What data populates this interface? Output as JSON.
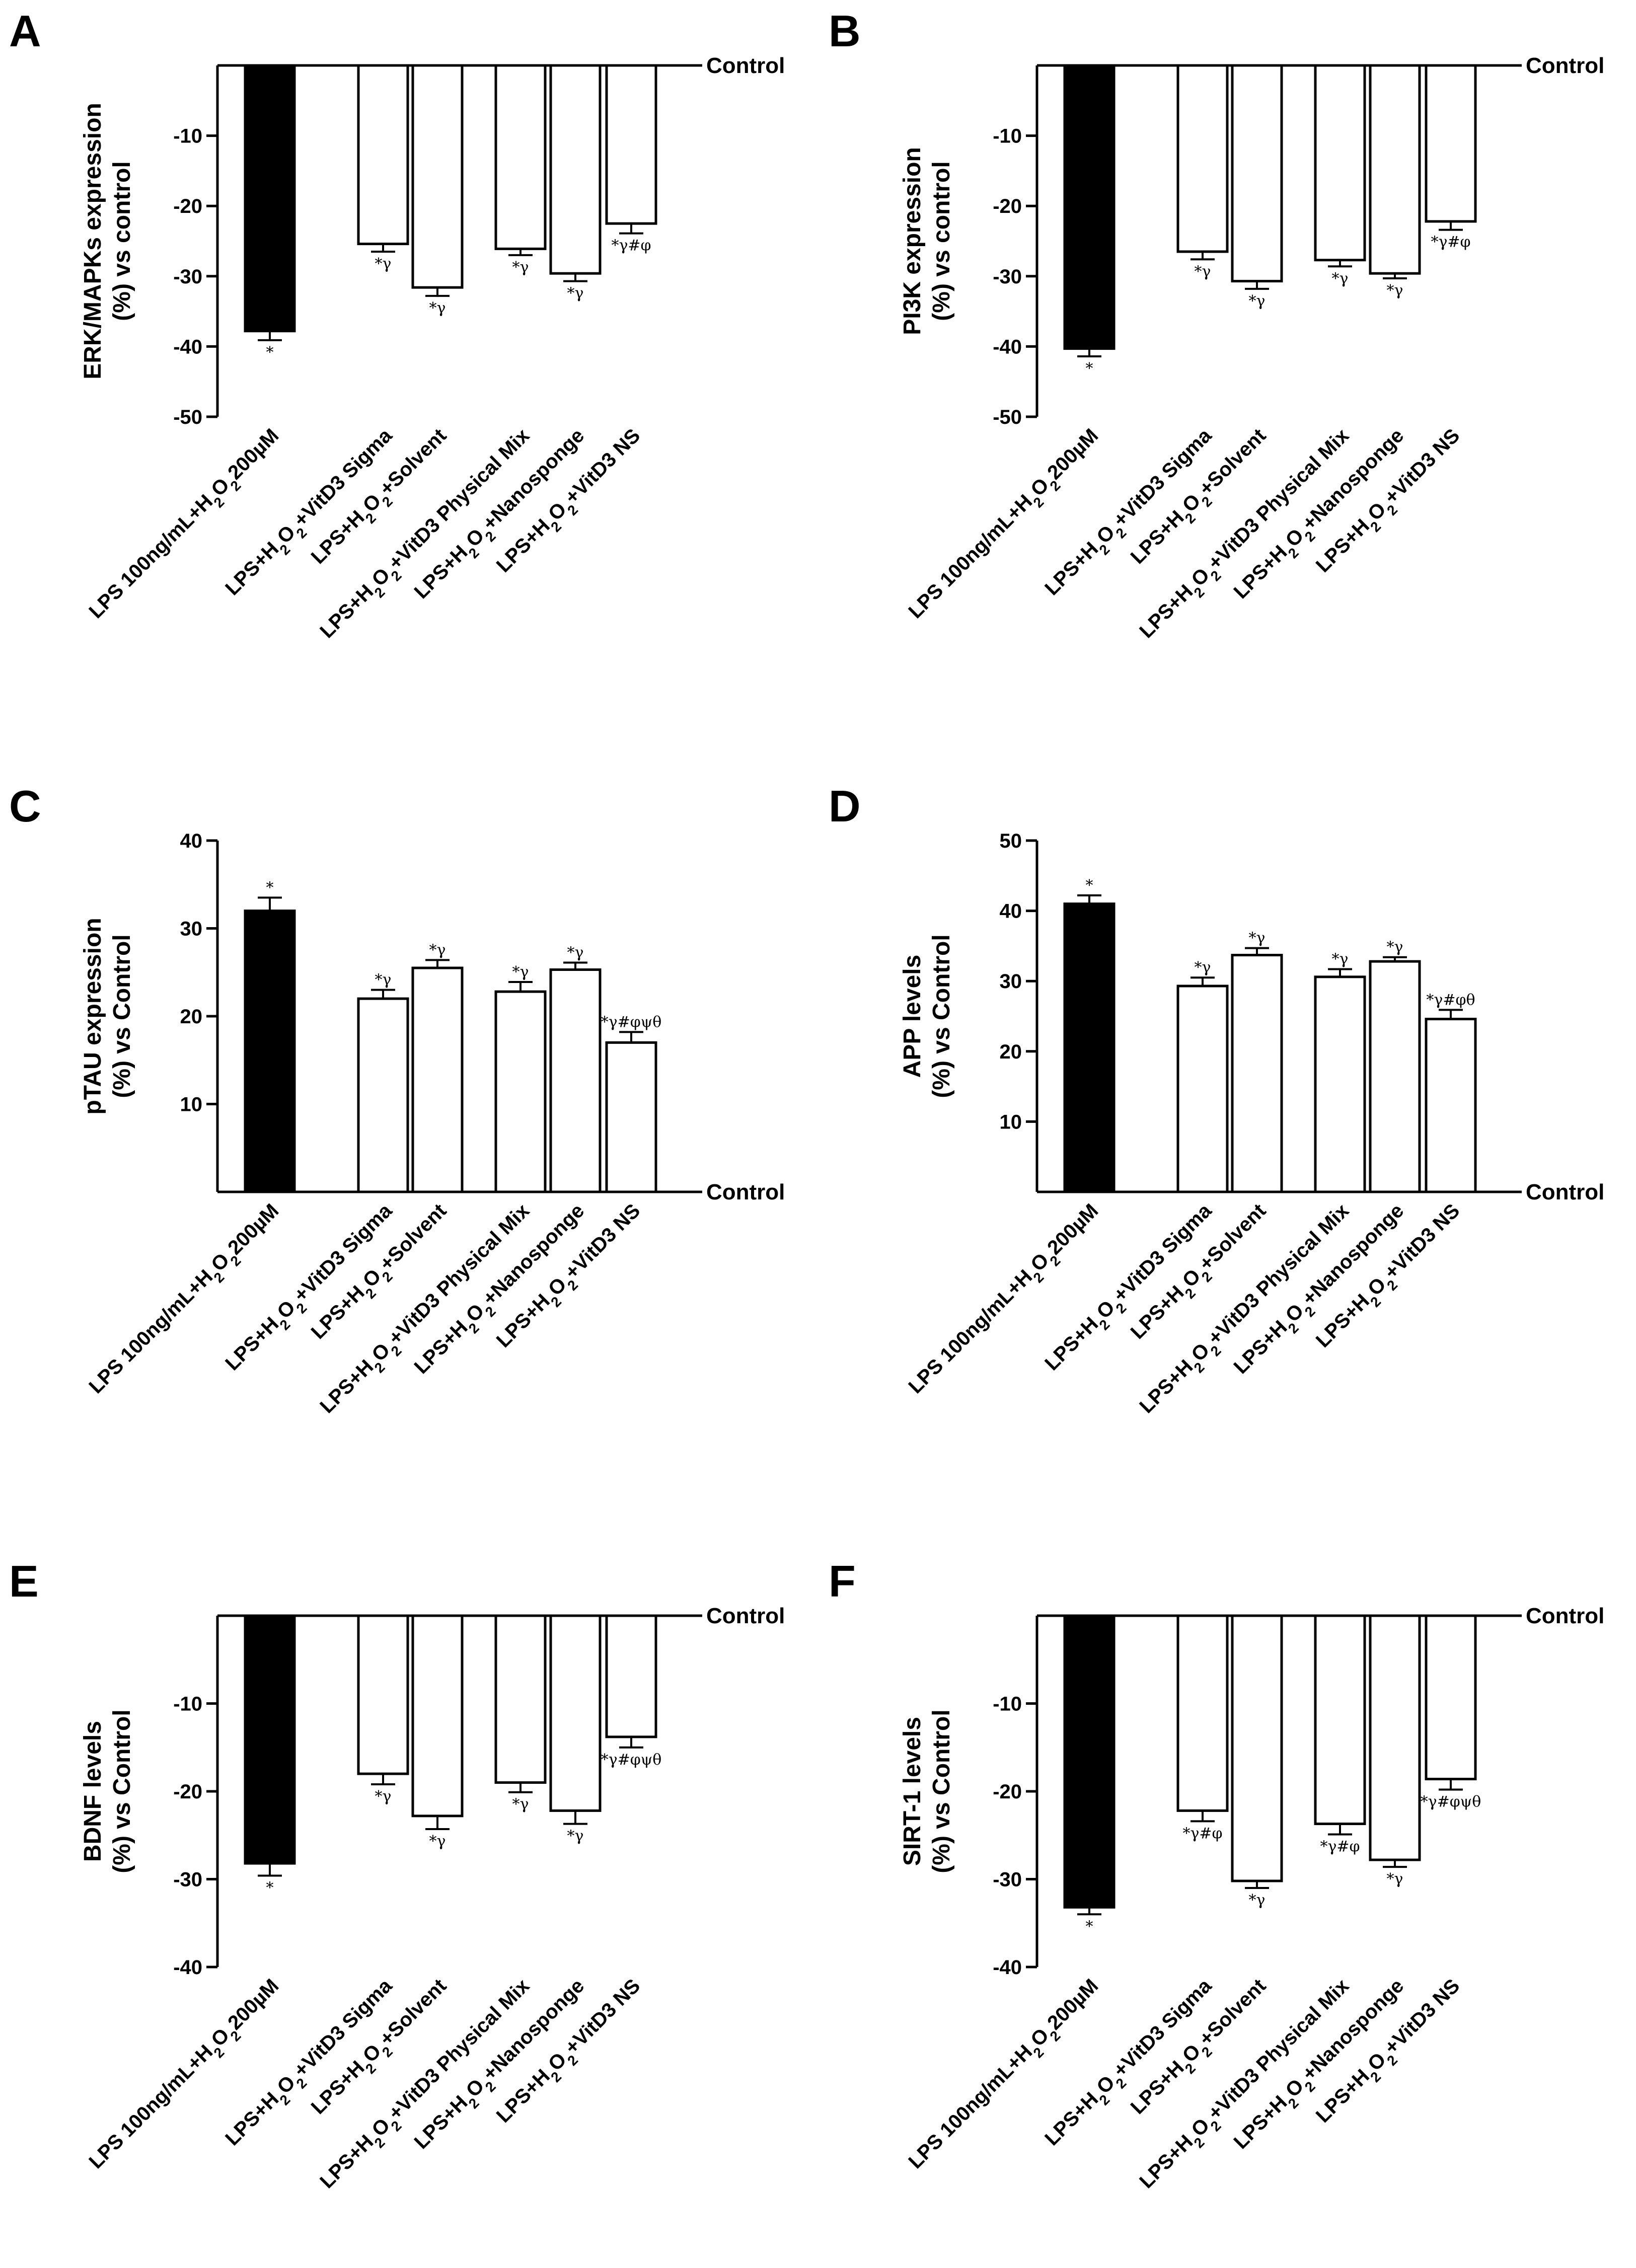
{
  "chart_data": [
    {
      "panel": "A",
      "type": "bar",
      "ylabel": [
        "ERK/MAPKs expression",
        "(%) vs control"
      ],
      "baseline_label": "Control",
      "ylim": [
        -50,
        0
      ],
      "yticks": [
        -10,
        -20,
        -30,
        -40,
        -50
      ],
      "categories": [
        "LPS 100ng/mL+H2O2200µM",
        "LPS+H2O2+VitD3 Sigma",
        "LPS+H2O2+Solvent",
        "LPS+H2O2+VitD3 Physical Mix",
        "LPS+H2O2+Nanosponge",
        "LPS+H2O2+VitD3 NS"
      ],
      "values": [
        -37.8,
        -25.4,
        -31.6,
        -26.1,
        -29.6,
        -22.5
      ],
      "errors": [
        1.3,
        1.1,
        1.2,
        0.9,
        1.1,
        1.4
      ],
      "significance": [
        "*",
        "*γ",
        "*γ",
        "*γ",
        "*γ",
        "*γ#φ"
      ]
    },
    {
      "panel": "B",
      "type": "bar",
      "ylabel": [
        "PI3K expression",
        "(%) vs control"
      ],
      "baseline_label": "Control",
      "ylim": [
        -50,
        0
      ],
      "yticks": [
        -10,
        -20,
        -30,
        -40,
        -50
      ],
      "categories": [
        "LPS 100ng/mL+H2O2200µM",
        "LPS+H2O2+VitD3 Sigma",
        "LPS+H2O2+Solvent",
        "LPS+H2O2+VitD3 Physical Mix",
        "LPS+H2O2+Nanosponge",
        "LPS+H2O2+VitD3 NS"
      ],
      "values": [
        -40.3,
        -26.5,
        -30.7,
        -27.7,
        -29.6,
        -22.2
      ],
      "errors": [
        1.1,
        1.1,
        1.1,
        0.9,
        0.7,
        1.2
      ],
      "significance": [
        "*",
        "*γ",
        "*γ",
        "*γ",
        "*γ",
        "*γ#φ"
      ]
    },
    {
      "panel": "C",
      "type": "bar",
      "ylabel": [
        "pTAU expression",
        "(%) vs Control"
      ],
      "baseline_label": "Control",
      "ylim": [
        0,
        40
      ],
      "yticks": [
        10,
        20,
        30,
        40
      ],
      "categories": [
        "LPS 100ng/mL+H2O2200µM",
        "LPS+H2O2+VitD3 Sigma",
        "LPS+H2O2+Solvent",
        "LPS+H2O2+VitD3 Physical Mix",
        "LPS+H2O2+Nanosponge",
        "LPS+H2O2+VitD3 NS"
      ],
      "values": [
        32.0,
        22.0,
        25.5,
        22.8,
        25.3,
        17.0
      ],
      "errors": [
        1.5,
        1.0,
        0.9,
        1.1,
        0.8,
        1.2
      ],
      "significance": [
        "*",
        "*γ",
        "*γ",
        "*γ",
        "*γ",
        "*γ#φψθ"
      ]
    },
    {
      "panel": "D",
      "type": "bar",
      "ylabel": [
        "APP levels",
        "(%) vs Control"
      ],
      "baseline_label": "Control",
      "ylim": [
        0,
        50
      ],
      "yticks": [
        10,
        20,
        30,
        40,
        50
      ],
      "categories": [
        "LPS 100ng/mL+H2O2200µM",
        "LPS+H2O2+VitD3 Sigma",
        "LPS+H2O2+Solvent",
        "LPS+H2O2+VitD3 Physical Mix",
        "LPS+H2O2+Nanosponge",
        "LPS+H2O2+VitD3 NS"
      ],
      "values": [
        41.0,
        29.3,
        33.7,
        30.6,
        32.8,
        24.6
      ],
      "errors": [
        1.2,
        1.2,
        1.0,
        1.1,
        0.6,
        1.3
      ],
      "significance": [
        "*",
        "*γ",
        "*γ",
        "*γ",
        "*γ",
        "*γ#φθ"
      ]
    },
    {
      "panel": "E",
      "type": "bar",
      "ylabel": [
        "BDNF levels",
        "(%) vs Control"
      ],
      "baseline_label": "Control",
      "ylim": [
        -40,
        0
      ],
      "yticks": [
        -10,
        -20,
        -30,
        -40
      ],
      "categories": [
        "LPS 100ng/mL+H2O2200µM",
        "LPS+H2O2+VitD3 Sigma",
        "LPS+H2O2+Solvent",
        "LPS+H2O2+VitD3 Physical Mix",
        "LPS+H2O2+Nanosponge",
        "LPS+H2O2+VitD3 NS"
      ],
      "values": [
        -28.2,
        -18.0,
        -22.8,
        -19.0,
        -22.2,
        -13.8
      ],
      "errors": [
        1.4,
        1.2,
        1.5,
        1.1,
        1.5,
        1.2
      ],
      "significance": [
        "*",
        "*γ",
        "*γ",
        "*γ",
        "*γ",
        "*γ#φψθ"
      ]
    },
    {
      "panel": "F",
      "type": "bar",
      "ylabel": [
        "SIRT-1 levels",
        "(%) vs Control"
      ],
      "baseline_label": "Control",
      "ylim": [
        -40,
        0
      ],
      "yticks": [
        -10,
        -20,
        -30,
        -40
      ],
      "categories": [
        "LPS 100ng/mL+H2O2200µM",
        "LPS+H2O2+VitD3 Sigma",
        "LPS+H2O2+Solvent",
        "LPS+H2O2+VitD3 Physical Mix",
        "LPS+H2O2+Nanosponge",
        "LPS+H2O2+VitD3 NS"
      ],
      "values": [
        -33.2,
        -22.2,
        -30.2,
        -23.7,
        -27.8,
        -18.6
      ],
      "errors": [
        0.8,
        1.2,
        0.8,
        1.2,
        0.8,
        1.2
      ],
      "significance": [
        "*",
        "*γ#φ",
        "*γ",
        "*γ#φ",
        "*γ",
        "*γ#φψθ"
      ]
    }
  ]
}
